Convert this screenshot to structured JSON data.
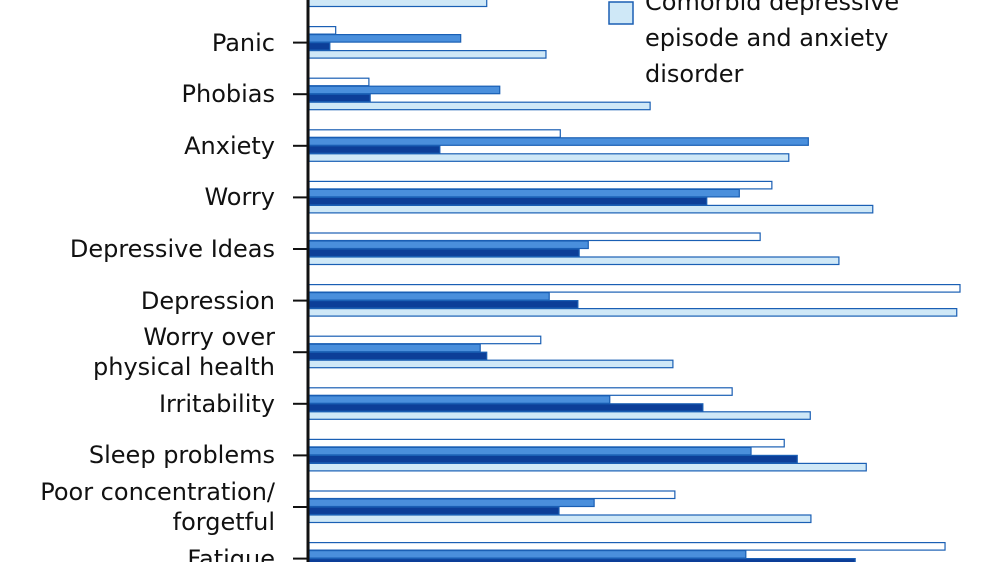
{
  "chart_data": {
    "type": "barh",
    "categories": [
      null,
      "Panic",
      "Phobias",
      "Anxiety",
      "Worry",
      "Depressive Ideas",
      "Depression",
      "Worry over\nphysical health",
      "Irritability",
      "Sleep problems",
      "Poor concentration/\nforgetful",
      "Fatigue"
    ],
    "xlim": [
      0,
      100
    ],
    "series": [
      {
        "color": "#ffffff",
        "values": [
          null,
          4.1,
          9.2,
          38.6,
          71.1,
          69.3,
          100,
          35.6,
          65.0,
          73.0,
          56.2,
          97.7
        ]
      },
      {
        "color": "#4a8fdc",
        "values": [
          null,
          23.3,
          29.3,
          76.7,
          66.1,
          42.9,
          36.9,
          26.3,
          46.2,
          67.9,
          43.8,
          67.1
        ]
      },
      {
        "color": "#0c3e98",
        "values": [
          null,
          3.2,
          9.4,
          20.1,
          61.1,
          41.5,
          41.3,
          27.3,
          60.5,
          75.0,
          38.4,
          83.9
        ]
      },
      {
        "name": "Comorbid depressive\nepisode and anxiety\ndisorder",
        "color": "#cfe8f7",
        "values": [
          27.3,
          36.4,
          52.4,
          73.7,
          86.6,
          81.4,
          99.5,
          55.9,
          77.0,
          85.6,
          77.1,
          null
        ]
      }
    ]
  }
}
